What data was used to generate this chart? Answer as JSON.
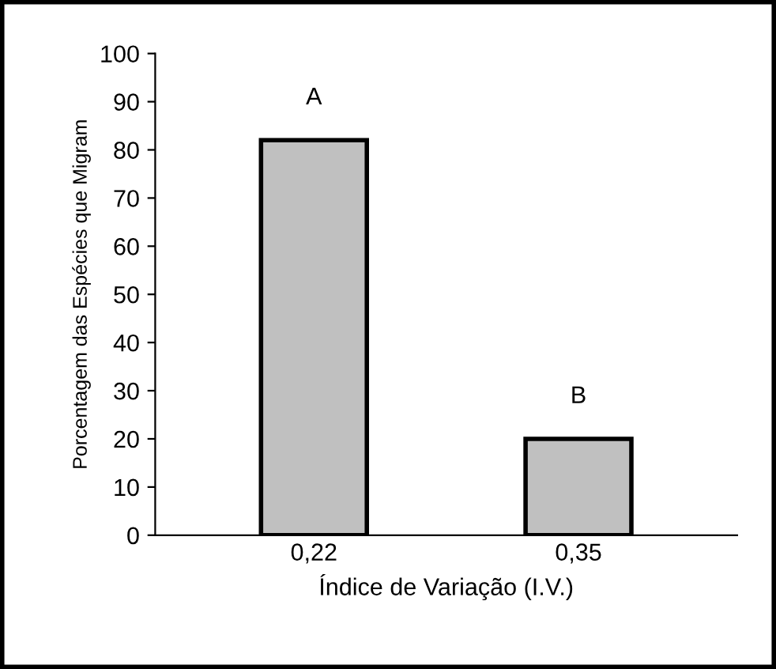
{
  "chart_data": {
    "type": "bar",
    "xlabel": "Índice de Variação (I.V.)",
    "ylabel": "Porcentagem das Espécies que Migram",
    "categories": [
      "0,22",
      "0,35"
    ],
    "values": [
      82,
      20
    ],
    "color": "#c0c0c0",
    "ylim": [
      0,
      100
    ],
    "yticks": [
      0,
      10,
      20,
      30,
      40,
      50,
      60,
      70,
      80,
      90,
      100
    ],
    "grid": false,
    "annotations": [
      "A",
      "B"
    ]
  }
}
